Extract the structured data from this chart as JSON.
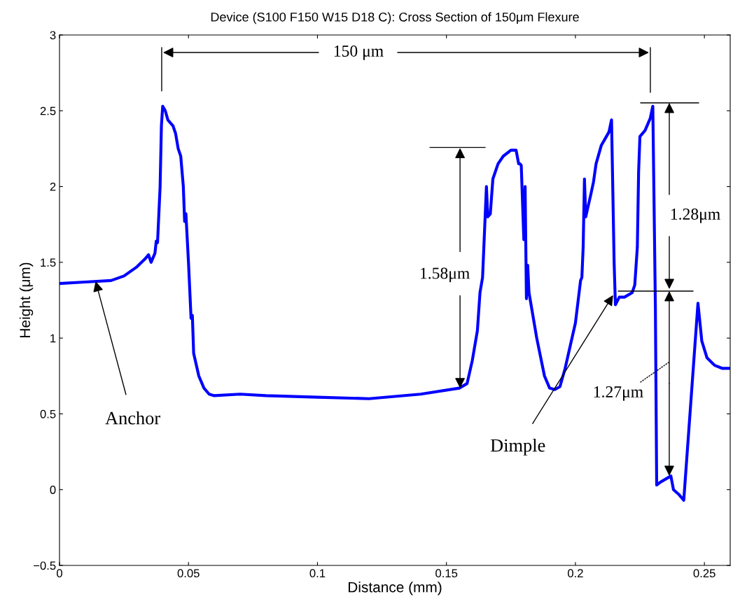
{
  "chart_data": {
    "type": "line",
    "title": "Device (S100 F150 W15 D18 C): Cross Section of 150μm Flexure",
    "xlabel": "Distance (mm)",
    "ylabel": "Height (μm)",
    "xlim": [
      0,
      0.26
    ],
    "ylim": [
      -0.5,
      3
    ],
    "xticks": [
      0,
      0.05,
      0.1,
      0.15,
      0.2,
      0.25
    ],
    "yticks": [
      {
        "value": -0.5,
        "label": "−0.5"
      },
      0,
      0.5,
      1,
      1.5,
      2,
      2.5,
      3
    ],
    "marker": "none",
    "line_style": "solid",
    "series": [
      {
        "color": "#0000ff",
        "x": [
          0,
          0.01,
          0.02,
          0.025,
          0.03,
          0.033,
          0.0345,
          0.0355,
          0.037,
          0.0375,
          0.038,
          0.039,
          0.0395,
          0.04,
          0.041,
          0.042,
          0.044,
          0.045,
          0.046,
          0.047,
          0.048,
          0.0485,
          0.049,
          0.05,
          0.051,
          0.0515,
          0.052,
          0.054,
          0.056,
          0.058,
          0.06,
          0.07,
          0.08,
          0.1,
          0.12,
          0.14,
          0.155,
          0.158,
          0.16,
          0.162,
          0.163,
          0.164,
          0.1645,
          0.165,
          0.1655,
          0.166,
          0.167,
          0.168,
          0.17,
          0.172,
          0.175,
          0.177,
          0.178,
          0.1785,
          0.179,
          0.18,
          0.1805,
          0.181,
          0.1815,
          0.182,
          0.185,
          0.188,
          0.19,
          0.192,
          0.194,
          0.196,
          0.198,
          0.2,
          0.202,
          0.2025,
          0.203,
          0.2035,
          0.204,
          0.206,
          0.207,
          0.208,
          0.21,
          0.212,
          0.213,
          0.214,
          0.215,
          0.2155,
          0.217,
          0.219,
          0.222,
          0.223,
          0.224,
          0.2245,
          0.225,
          0.227,
          0.229,
          0.23,
          0.231,
          0.2315,
          0.233,
          0.236,
          0.237,
          0.238,
          0.24,
          0.242,
          0.2475,
          0.249,
          0.251,
          0.254,
          0.257,
          0.26
        ],
        "values": [
          1.36,
          1.37,
          1.38,
          1.41,
          1.47,
          1.52,
          1.55,
          1.5,
          1.56,
          1.64,
          1.63,
          2.0,
          2.4,
          2.53,
          2.5,
          2.44,
          2.4,
          2.35,
          2.25,
          2.2,
          2.0,
          1.77,
          1.82,
          1.5,
          1.13,
          1.15,
          0.9,
          0.75,
          0.67,
          0.63,
          0.62,
          0.63,
          0.62,
          0.61,
          0.6,
          0.63,
          0.67,
          0.7,
          0.85,
          1.05,
          1.3,
          1.4,
          1.6,
          1.8,
          2.0,
          1.8,
          1.82,
          2.05,
          2.15,
          2.2,
          2.24,
          2.24,
          2.15,
          2.15,
          2.14,
          1.65,
          2.0,
          1.26,
          1.48,
          1.3,
          1.0,
          0.75,
          0.67,
          0.66,
          0.68,
          0.8,
          0.95,
          1.1,
          1.38,
          1.4,
          1.6,
          2.05,
          1.8,
          1.95,
          2.03,
          2.15,
          2.27,
          2.33,
          2.36,
          2.44,
          1.5,
          1.22,
          1.27,
          1.27,
          1.3,
          1.35,
          1.6,
          2.1,
          2.33,
          2.37,
          2.45,
          2.53,
          1.2,
          0.03,
          0.05,
          0.08,
          0.09,
          0.0,
          -0.03,
          -0.07,
          1.23,
          0.98,
          0.87,
          0.82,
          0.8,
          0.8
        ]
      }
    ],
    "annotations": [
      "150 μm",
      {
        "text": "1.58μm",
        "x": 0.155,
        "y": 0.67
      },
      "1.28μm",
      "1.27μm",
      {
        "text": "Anchor",
        "x": 0.014,
        "y": 1.375
      },
      {
        "text": "Dimple",
        "x": 0.2146,
        "y": 1.283
      }
    ]
  }
}
